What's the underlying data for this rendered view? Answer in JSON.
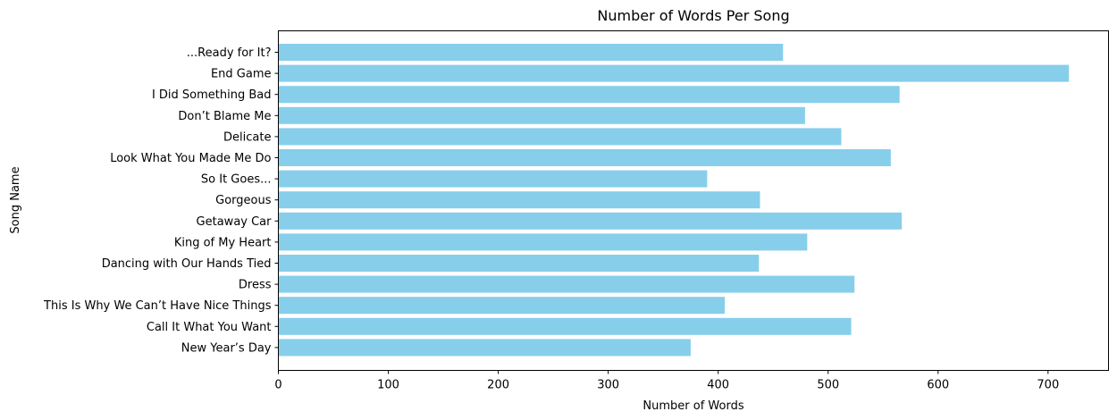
{
  "chart_data": {
    "type": "bar",
    "orientation": "horizontal",
    "title": "Number of Words Per Song",
    "xlabel": "Number of Words",
    "ylabel": "Song Name",
    "xlim": [
      0,
      755
    ],
    "xticks": [
      0,
      100,
      200,
      300,
      400,
      500,
      600,
      700
    ],
    "grid": false,
    "bar_color": "#87CEEB",
    "categories": [
      "...Ready for It?",
      "End Game",
      "I Did Something Bad",
      "Don’t Blame Me",
      "Delicate",
      "Look What You Made Me Do",
      "So It Goes...",
      "Gorgeous",
      "Getaway Car",
      "King of My Heart",
      "Dancing with Our Hands Tied",
      "Dress",
      "This Is Why We Can’t Have Nice Things",
      "Call It What You Want",
      "New Year’s Day"
    ],
    "values": [
      459,
      719,
      565,
      479,
      512,
      557,
      390,
      438,
      567,
      481,
      437,
      524,
      406,
      521,
      375
    ]
  }
}
